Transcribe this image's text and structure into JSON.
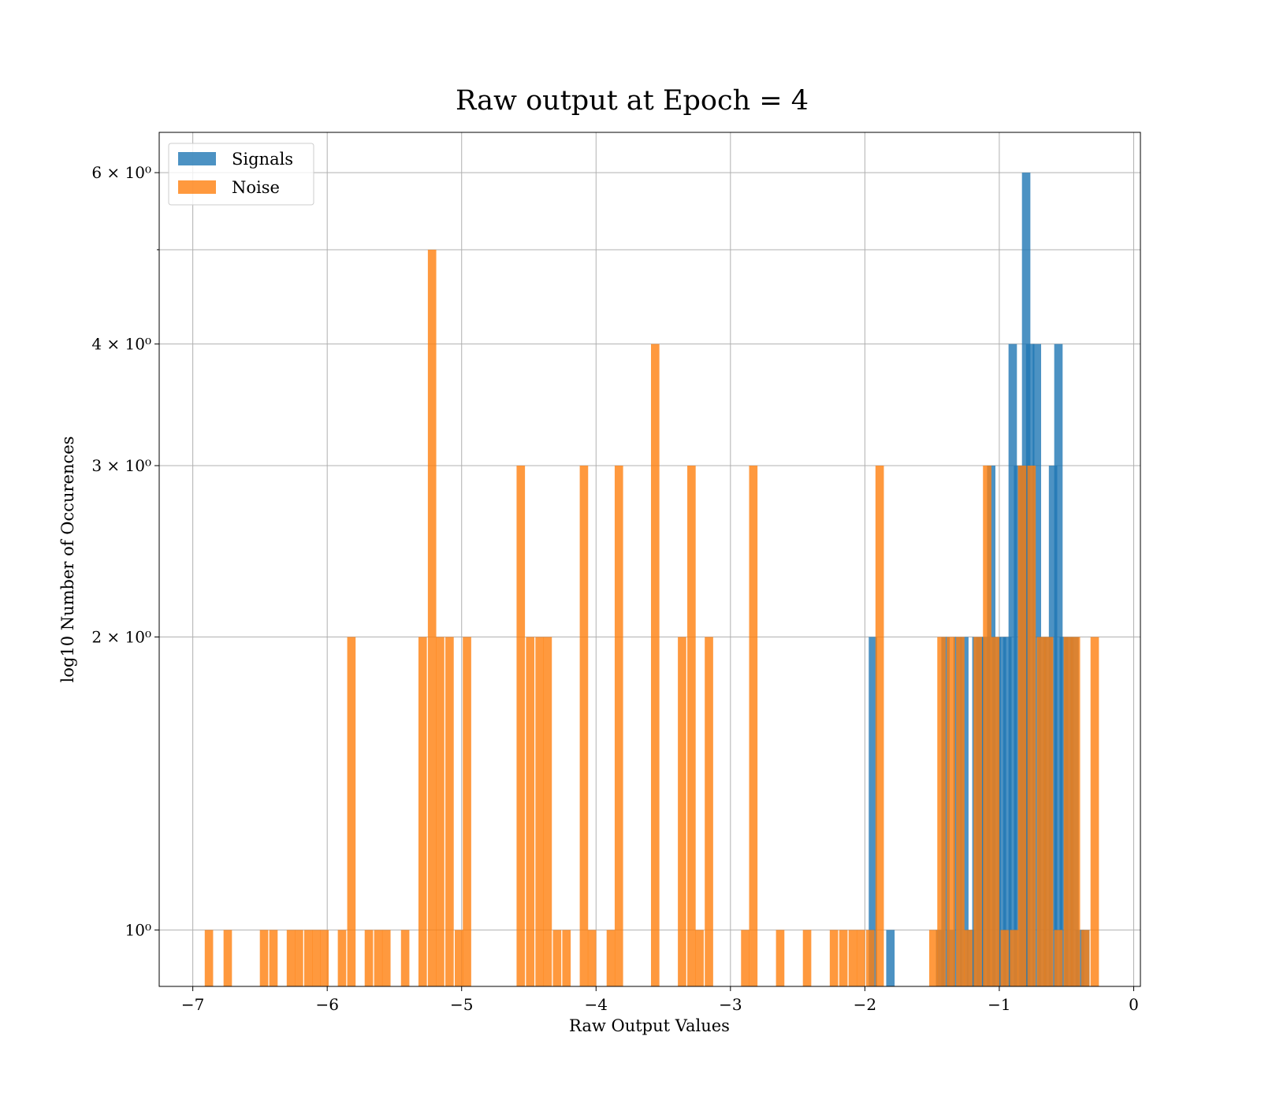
{
  "chart_data": {
    "type": "bar",
    "title": "Raw output at Epoch = 4",
    "xlabel": "Raw Output Values",
    "ylabel": "log10 Number of Occurences",
    "xlim": [
      -7.25,
      0.05
    ],
    "ylim": [
      0.875,
      6.6
    ],
    "yscale": "log",
    "grid": true,
    "legend_position": "top-left",
    "bin_width": 0.0625,
    "x_ticks": [
      -7,
      -6,
      -5,
      -4,
      -3,
      -2,
      -1,
      0
    ],
    "x_tick_labels": [
      "−7",
      "−6",
      "−5",
      "−4",
      "−3",
      "−2",
      "−1",
      "0"
    ],
    "y_ticks": [
      1,
      2,
      3,
      4,
      6
    ],
    "y_tick_labels": [
      "10⁰",
      "2 × 10⁰",
      "3 × 10⁰",
      "4 × 10⁰",
      "6 × 10⁰"
    ],
    "series": [
      {
        "name": "Signals",
        "color": "#1f77b4",
        "bins": [
          [
            -1.94,
            2
          ],
          [
            -1.81,
            1
          ],
          [
            -1.44,
            1
          ],
          [
            -1.4,
            2
          ],
          [
            -1.36,
            1
          ],
          [
            -1.31,
            2
          ],
          [
            -1.26,
            2
          ],
          [
            -1.21,
            1
          ],
          [
            -1.17,
            2
          ],
          [
            -1.14,
            2
          ],
          [
            -1.1,
            2
          ],
          [
            -1.06,
            3
          ],
          [
            -1.02,
            2
          ],
          [
            -0.98,
            2
          ],
          [
            -0.94,
            2
          ],
          [
            -0.9,
            4
          ],
          [
            -0.86,
            3
          ],
          [
            -0.82,
            3
          ],
          [
            -0.8,
            6
          ],
          [
            -0.77,
            4
          ],
          [
            -0.72,
            4
          ],
          [
            -0.68,
            2
          ],
          [
            -0.64,
            2
          ],
          [
            -0.6,
            3
          ],
          [
            -0.56,
            4
          ],
          [
            -0.52,
            2
          ],
          [
            -0.48,
            2
          ],
          [
            -0.44,
            2
          ],
          [
            -0.4,
            1
          ],
          [
            -0.36,
            1
          ]
        ]
      },
      {
        "name": "Noise",
        "color": "#ff7f0e",
        "bins": [
          [
            -6.88,
            1
          ],
          [
            -6.74,
            1
          ],
          [
            -6.47,
            1
          ],
          [
            -6.4,
            1
          ],
          [
            -6.27,
            1
          ],
          [
            -6.21,
            1
          ],
          [
            -6.14,
            1
          ],
          [
            -6.08,
            1
          ],
          [
            -6.02,
            1
          ],
          [
            -5.89,
            1
          ],
          [
            -5.82,
            2
          ],
          [
            -5.69,
            1
          ],
          [
            -5.62,
            1
          ],
          [
            -5.56,
            1
          ],
          [
            -5.42,
            1
          ],
          [
            -5.29,
            2
          ],
          [
            -5.22,
            5
          ],
          [
            -5.16,
            2
          ],
          [
            -5.09,
            2
          ],
          [
            -5.02,
            1
          ],
          [
            -4.96,
            2
          ],
          [
            -4.56,
            3
          ],
          [
            -4.49,
            2
          ],
          [
            -4.42,
            2
          ],
          [
            -4.36,
            2
          ],
          [
            -4.29,
            1
          ],
          [
            -4.22,
            1
          ],
          [
            -4.09,
            3
          ],
          [
            -4.03,
            1
          ],
          [
            -3.89,
            1
          ],
          [
            -3.83,
            3
          ],
          [
            -3.56,
            4
          ],
          [
            -3.36,
            2
          ],
          [
            -3.29,
            3
          ],
          [
            -3.23,
            1
          ],
          [
            -3.16,
            2
          ],
          [
            -2.89,
            1
          ],
          [
            -2.83,
            3
          ],
          [
            -2.63,
            1
          ],
          [
            -2.43,
            1
          ],
          [
            -2.23,
            1
          ],
          [
            -2.16,
            1
          ],
          [
            -2.09,
            1
          ],
          [
            -2.03,
            1
          ],
          [
            -1.96,
            1
          ],
          [
            -1.89,
            3
          ],
          [
            -1.49,
            1
          ],
          [
            -1.43,
            2
          ],
          [
            -1.36,
            2
          ],
          [
            -1.29,
            2
          ],
          [
            -1.23,
            1
          ],
          [
            -1.16,
            2
          ],
          [
            -1.09,
            3
          ],
          [
            -1.03,
            2
          ],
          [
            -0.96,
            1
          ],
          [
            -0.89,
            1
          ],
          [
            -0.83,
            3
          ],
          [
            -0.76,
            3
          ],
          [
            -0.69,
            2
          ],
          [
            -0.63,
            2
          ],
          [
            -0.56,
            1
          ],
          [
            -0.49,
            2
          ],
          [
            -0.43,
            2
          ],
          [
            -0.36,
            1
          ],
          [
            -0.29,
            2
          ]
        ]
      }
    ]
  }
}
